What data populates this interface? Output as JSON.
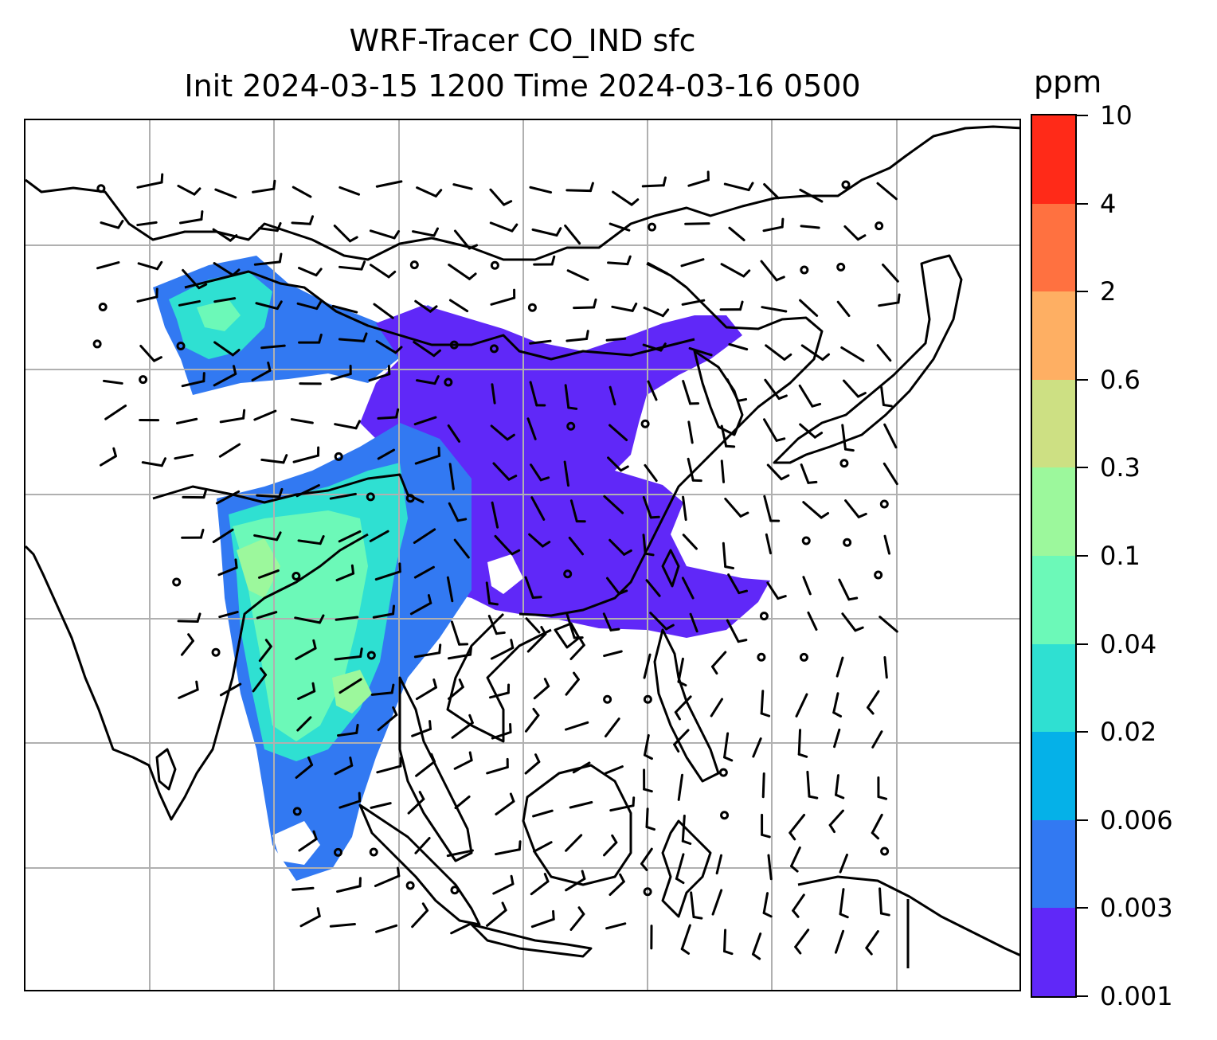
{
  "title": {
    "line1": "WRF-Tracer CO_IND sfc",
    "line2": "Init 2024-03-15 1200 Time 2024-03-16 0500"
  },
  "colorbar": {
    "unit": "ppm",
    "levels": [
      "0.001",
      "0.003",
      "0.006",
      "0.02",
      "0.04",
      "0.1",
      "0.3",
      "0.6",
      "2",
      "4",
      "10"
    ],
    "colors": [
      "#6028f8",
      "#3279f2",
      "#05b1e8",
      "#2fe0d2",
      "#6cf9b8",
      "#9cf89c",
      "#cde083",
      "#feaf63",
      "#ff7140",
      "#ff2a18"
    ]
  },
  "map": {
    "gridlines": true,
    "coastline_color": "#000000",
    "gridline_color": "#b0b0b0",
    "plume_colors_note_free": [
      "#6028f8",
      "#3279f2",
      "#05b1e8",
      "#2fe0d2",
      "#6cf9b8",
      "#9cf89c"
    ]
  }
}
